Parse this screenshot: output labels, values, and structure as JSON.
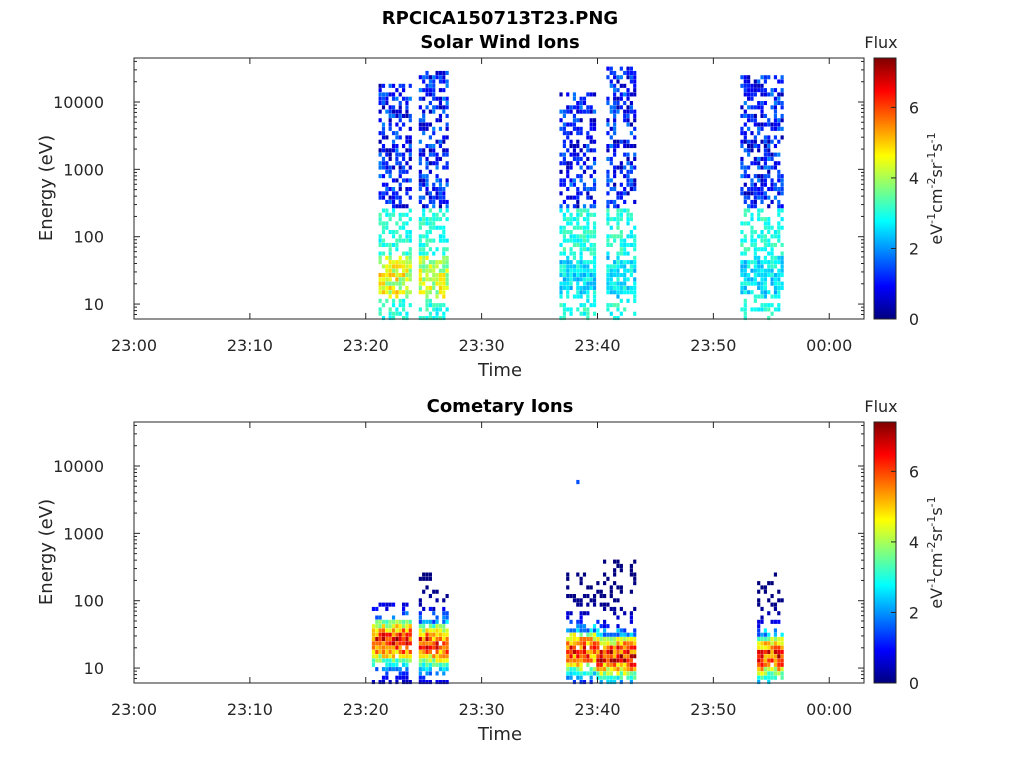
{
  "figure_title": "RPCICA150713T23.PNG",
  "colormap": [
    "#00007f",
    "#0000ff",
    "#007fff",
    "#00ffff",
    "#7fff7f",
    "#ffff00",
    "#ff7f00",
    "#ff0000",
    "#7f0000"
  ],
  "chart_data": [
    {
      "type": "heatmap",
      "title": "Solar Wind Ions",
      "xlabel": "Time",
      "ylabel": "Energy (eV)",
      "x_ticks": [
        "23:00",
        "23:10",
        "23:20",
        "23:30",
        "23:40",
        "23:50",
        "00:00"
      ],
      "x_range_minutes": [
        0,
        63
      ],
      "y_scale": "log",
      "y_ticks": [
        "10",
        "100",
        "1000",
        "10000"
      ],
      "ylim": [
        6,
        45000
      ],
      "colorbar": {
        "label": "Flux",
        "unit_base": "eV",
        "ticks": [
          "0",
          "2",
          "4",
          "6"
        ],
        "range": [
          0,
          7.4
        ]
      },
      "bursts": [
        {
          "t_start": 21.3,
          "t_end": 23.6,
          "e_min": 6,
          "e_max": 18000,
          "peak_flux": 5.0,
          "peak_energy": 25
        },
        {
          "t_start": 24.8,
          "t_end": 26.8,
          "e_min": 6,
          "e_max": 28000,
          "peak_flux": 4.8,
          "peak_energy": 25
        },
        {
          "t_start": 36.8,
          "t_end": 39.5,
          "e_min": 6,
          "e_max": 13000,
          "peak_flux": 3.0,
          "peak_energy": 25
        },
        {
          "t_start": 40.8,
          "t_end": 43.0,
          "e_min": 6,
          "e_max": 33000,
          "peak_flux": 3.0,
          "peak_energy": 25
        },
        {
          "t_start": 52.6,
          "t_end": 55.6,
          "e_min": 6,
          "e_max": 24000,
          "peak_flux": 3.0,
          "peak_energy": 25
        }
      ]
    },
    {
      "type": "heatmap",
      "title": "Cometary Ions",
      "xlabel": "Time",
      "ylabel": "Energy (eV)",
      "x_ticks": [
        "23:00",
        "23:10",
        "23:20",
        "23:30",
        "23:40",
        "23:50",
        "00:00"
      ],
      "x_range_minutes": [
        0,
        63
      ],
      "y_scale": "log",
      "y_ticks": [
        "10",
        "100",
        "1000",
        "10000"
      ],
      "ylim": [
        6,
        45000
      ],
      "colorbar": {
        "label": "Flux",
        "unit_base": "eV",
        "ticks": [
          "0",
          "2",
          "4",
          "6"
        ],
        "range": [
          0,
          7.4
        ]
      },
      "bursts": [
        {
          "t_start": 20.8,
          "t_end": 23.6,
          "e_min": 6,
          "e_max": 100,
          "peak_flux": 7.2,
          "peak_energy": 25
        },
        {
          "t_start": 24.8,
          "t_end": 26.8,
          "e_min": 6,
          "e_max": 320,
          "peak_flux": 7.0,
          "peak_energy": 22
        },
        {
          "t_start": 37.3,
          "t_end": 39.6,
          "e_min": 6,
          "e_max": 280,
          "peak_flux": 7.0,
          "peak_energy": 18
        },
        {
          "t_start": 40.0,
          "t_end": 42.8,
          "e_min": 6,
          "e_max": 380,
          "peak_flux": 7.2,
          "peak_energy": 15
        },
        {
          "t_start": 53.8,
          "t_end": 55.6,
          "e_min": 6,
          "e_max": 260,
          "peak_flux": 7.0,
          "peak_energy": 15
        }
      ],
      "isolated_points": [
        {
          "t": 38.3,
          "energy": 5800,
          "flux": 1.5
        }
      ]
    }
  ]
}
